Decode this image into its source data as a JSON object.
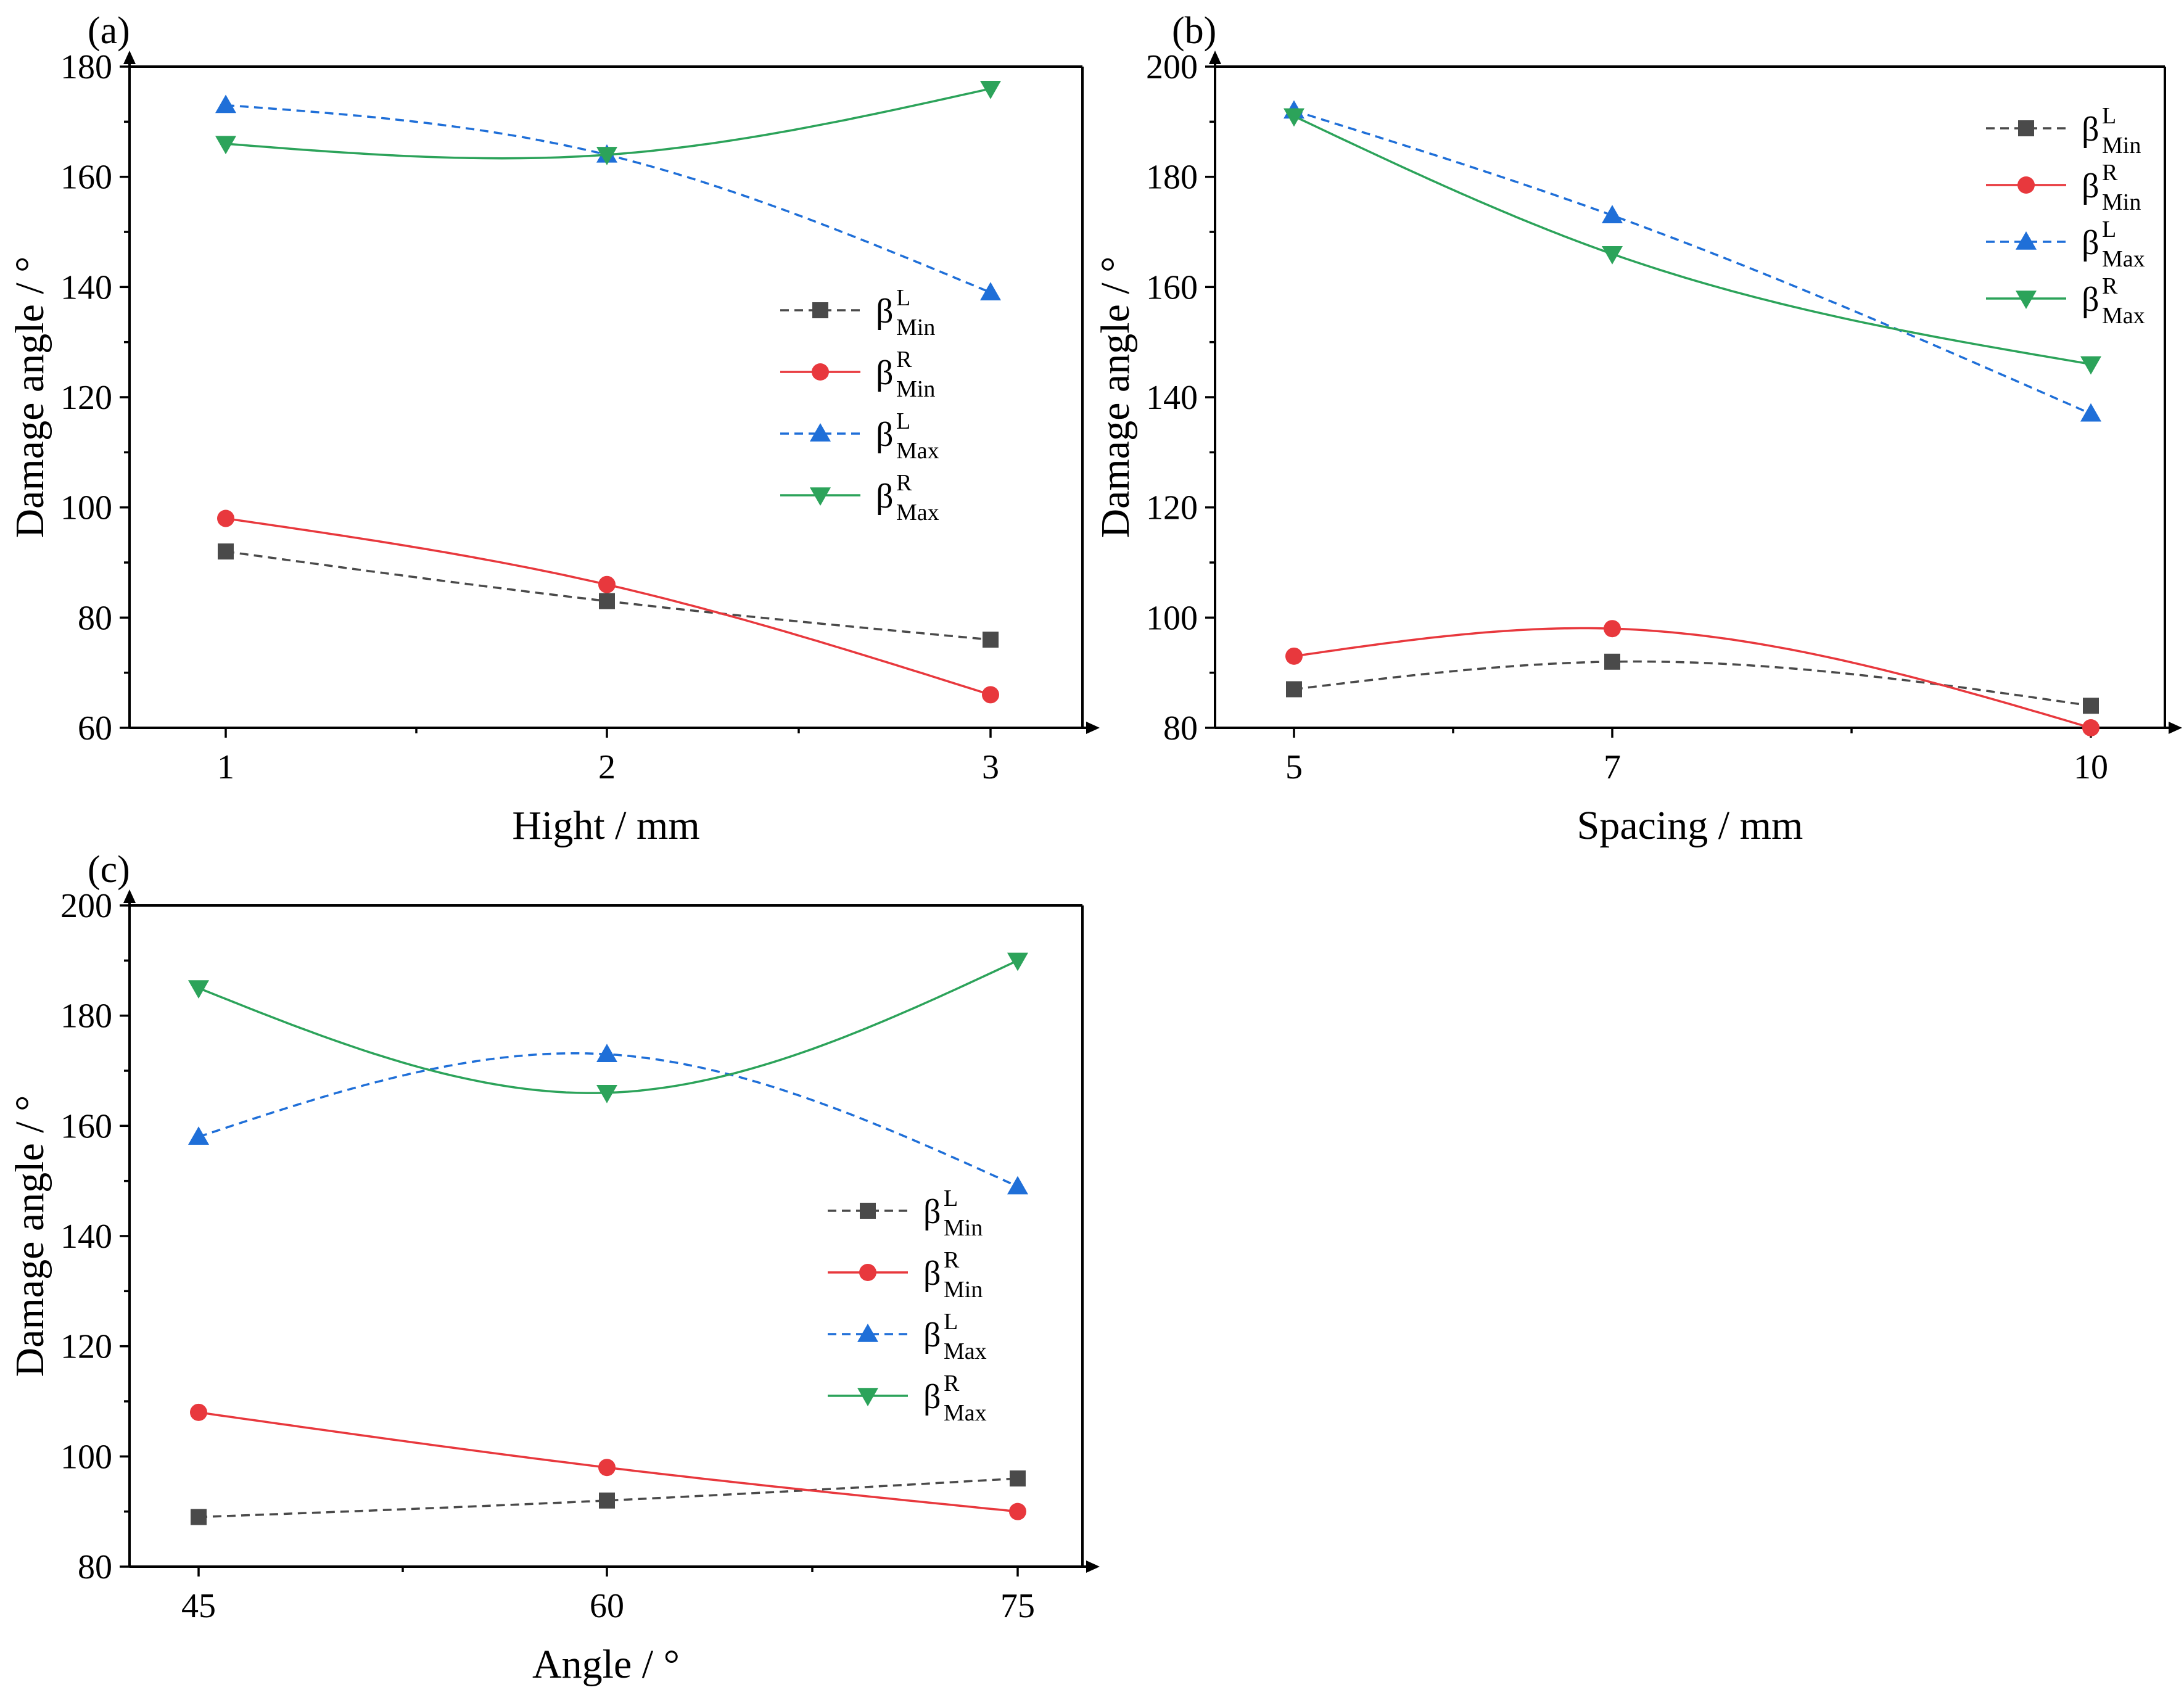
{
  "chart_data": [
    {
      "type": "line",
      "panel_label": "(a)",
      "xlabel": "Hight / mm",
      "ylabel": "Damage angle / °",
      "categories": [
        "1",
        "2",
        "3"
      ],
      "xlim": [
        0.8,
        3.25
      ],
      "ylim": [
        60,
        180
      ],
      "yticks": [
        "60",
        "80",
        "100",
        "120",
        "140",
        "160",
        "180"
      ],
      "grid": false,
      "legend_position": "center-right",
      "series": [
        {
          "name": "β^L_Min",
          "base": "β",
          "sup": "L",
          "sub": "Min",
          "values": [
            92,
            83,
            76
          ],
          "color": "#4a4a4a",
          "marker": "square",
          "line": "dashed"
        },
        {
          "name": "β^R_Min",
          "base": "β",
          "sup": "R",
          "sub": "Min",
          "values": [
            98,
            86,
            66
          ],
          "color": "#e8383d",
          "marker": "circle",
          "line": "solid"
        },
        {
          "name": "β^L_Max",
          "base": "β",
          "sup": "L",
          "sub": "Max",
          "values": [
            173,
            164,
            139
          ],
          "color": "#1f6fd8",
          "marker": "triangle-up",
          "line": "dashed"
        },
        {
          "name": "β^R_Max",
          "base": "β",
          "sup": "R",
          "sub": "Max",
          "values": [
            166,
            164,
            176
          ],
          "color": "#2ca35a",
          "marker": "triangle-down",
          "line": "solid"
        }
      ]
    },
    {
      "type": "line",
      "panel_label": "(b)",
      "xlabel": "Spacing / mm",
      "ylabel": "Damage angle / °",
      "categories": [
        "5",
        "7",
        "10"
      ],
      "xlim": [
        4.5,
        10.5
      ],
      "ylim": [
        80,
        200
      ],
      "yticks": [
        "80",
        "100",
        "120",
        "140",
        "160",
        "180",
        "200"
      ],
      "grid": false,
      "legend_position": "top-right",
      "series": [
        {
          "name": "β^L_Min",
          "base": "β",
          "sup": "L",
          "sub": "Min",
          "values": [
            87,
            92,
            84
          ],
          "color": "#4a4a4a",
          "marker": "square",
          "line": "dashed"
        },
        {
          "name": "β^R_Min",
          "base": "β",
          "sup": "R",
          "sub": "Min",
          "values": [
            93,
            98,
            80
          ],
          "color": "#e8383d",
          "marker": "circle",
          "line": "solid"
        },
        {
          "name": "β^L_Max",
          "base": "β",
          "sup": "L",
          "sub": "Max",
          "values": [
            192,
            173,
            137
          ],
          "color": "#1f6fd8",
          "marker": "triangle-up",
          "line": "dashed"
        },
        {
          "name": "β^R_Max",
          "base": "β",
          "sup": "R",
          "sub": "Max",
          "values": [
            191,
            166,
            146
          ],
          "color": "#2ca35a",
          "marker": "triangle-down",
          "line": "solid"
        }
      ]
    },
    {
      "type": "line",
      "panel_label": "(c)",
      "xlabel": "Angle / °",
      "ylabel": "Damage angle / °",
      "categories": [
        "45",
        "60",
        "75"
      ],
      "xlim": [
        42.5,
        77.5
      ],
      "ylim": [
        80,
        200
      ],
      "yticks": [
        "80",
        "100",
        "120",
        "140",
        "160",
        "180",
        "200"
      ],
      "grid": false,
      "legend_position": "center-right",
      "series": [
        {
          "name": "β^L_Min",
          "base": "β",
          "sup": "L",
          "sub": "Min",
          "values": [
            89,
            92,
            96
          ],
          "color": "#4a4a4a",
          "marker": "square",
          "line": "dashed"
        },
        {
          "name": "β^R_Min",
          "base": "β",
          "sup": "R",
          "sub": "Min",
          "values": [
            108,
            98,
            90
          ],
          "color": "#e8383d",
          "marker": "circle",
          "line": "solid"
        },
        {
          "name": "β^L_Max",
          "base": "β",
          "sup": "L",
          "sub": "Max",
          "values": [
            158,
            173,
            149
          ],
          "color": "#1f6fd8",
          "marker": "triangle-up",
          "line": "dashed"
        },
        {
          "name": "β^R_Max",
          "base": "β",
          "sup": "R",
          "sub": "Max",
          "values": [
            185,
            166,
            190
          ],
          "color": "#2ca35a",
          "marker": "triangle-down",
          "line": "solid"
        }
      ]
    }
  ]
}
